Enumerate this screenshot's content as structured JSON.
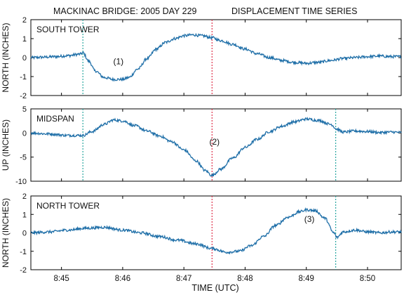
{
  "figure": {
    "title_left": "MACKINAC BRIDGE:  2005  DAY 229",
    "title_right": "DISPLACEMENT TIME SERIES",
    "xlabel": "TIME  (UTC)",
    "x_tick_labels": [
      "8:45",
      "8:46",
      "8:47",
      "8:48",
      "8:49",
      "8:50"
    ]
  },
  "chart_data": [
    {
      "type": "line",
      "panel_label": "SOUTH TOWER",
      "ylabel": "NORTH  (INCHES)",
      "xlabel": "TIME  (UTC)",
      "xlim_minutes_after_8h": [
        44.5,
        50.55
      ],
      "ylim": [
        -2,
        2
      ],
      "y_ticks": [
        -2,
        -1,
        0,
        1,
        2
      ],
      "grid": false,
      "annotation": {
        "text": "(1)",
        "x": 45.93,
        "y": -0.35
      },
      "markers": [
        {
          "x": 45.35,
          "color": "#2aa6a0"
        },
        {
          "x": 47.46,
          "color": "#e0304a"
        }
      ],
      "series": [
        {
          "color": "#1f6fa8",
          "x": [
            44.5,
            44.7,
            44.9,
            45.1,
            45.3,
            45.35,
            45.45,
            45.55,
            45.7,
            45.85,
            46.0,
            46.1,
            46.25,
            46.4,
            46.55,
            46.7,
            46.85,
            47.0,
            47.15,
            47.3,
            47.46,
            47.6,
            47.8,
            48.0,
            48.2,
            48.4,
            48.6,
            48.8,
            49.0,
            49.2,
            49.4,
            49.6,
            49.8,
            50.0,
            50.2,
            50.4,
            50.55
          ],
          "y": [
            0.0,
            0.02,
            0.05,
            0.1,
            0.18,
            0.25,
            -0.2,
            -0.7,
            -1.05,
            -1.15,
            -1.15,
            -1.05,
            -0.6,
            -0.05,
            0.45,
            0.8,
            1.0,
            1.15,
            1.2,
            1.15,
            1.05,
            0.9,
            0.7,
            0.45,
            0.2,
            0.0,
            -0.15,
            -0.25,
            -0.3,
            -0.25,
            -0.15,
            -0.05,
            0.0,
            0.05,
            0.08,
            0.05,
            0.05
          ]
        }
      ]
    },
    {
      "type": "line",
      "panel_label": "MIDSPAN",
      "ylabel": "UP  (INCHES)",
      "xlabel": "TIME  (UTC)",
      "xlim_minutes_after_8h": [
        44.5,
        50.55
      ],
      "ylim": [
        -10,
        5
      ],
      "y_ticks": [
        -10,
        -5,
        0,
        5
      ],
      "grid": false,
      "annotation": {
        "text": "(2)",
        "x": 47.5,
        "y": -2.4
      },
      "markers": [
        {
          "x": 45.35,
          "color": "#2aa6a0"
        },
        {
          "x": 47.46,
          "color": "#e0304a"
        },
        {
          "x": 49.48,
          "color": "#2aa6a0"
        }
      ],
      "series": [
        {
          "color": "#1f6fa8",
          "x": [
            44.5,
            44.8,
            45.1,
            45.35,
            45.5,
            45.7,
            45.85,
            46.0,
            46.2,
            46.4,
            46.6,
            46.8,
            47.0,
            47.2,
            47.35,
            47.46,
            47.6,
            47.8,
            48.0,
            48.2,
            48.4,
            48.6,
            48.8,
            49.0,
            49.2,
            49.4,
            49.5,
            49.6,
            49.8,
            50.0,
            50.2,
            50.4,
            50.55
          ],
          "y": [
            0.0,
            -0.2,
            -0.5,
            -0.5,
            0.3,
            1.8,
            2.7,
            2.5,
            1.5,
            0.4,
            -0.6,
            -1.8,
            -3.5,
            -5.8,
            -7.8,
            -8.8,
            -7.5,
            -5.2,
            -3.0,
            -1.3,
            0.3,
            1.4,
            2.3,
            2.9,
            2.6,
            1.8,
            0.8,
            0.2,
            0.4,
            0.3,
            0.1,
            0.2,
            0.1
          ]
        }
      ]
    },
    {
      "type": "line",
      "panel_label": "NORTH TOWER",
      "ylabel": "NORTH  (INCHES)",
      "xlabel": "TIME  (UTC)",
      "xlim_minutes_after_8h": [
        44.5,
        50.55
      ],
      "ylim": [
        -2,
        2
      ],
      "y_ticks": [
        -2,
        -1,
        0,
        1,
        2
      ],
      "grid": false,
      "annotation": {
        "text": "(3)",
        "x": 49.05,
        "y": 0.6
      },
      "markers": [
        {
          "x": 47.46,
          "color": "#e0304a"
        },
        {
          "x": 49.48,
          "color": "#2aa6a0"
        }
      ],
      "series": [
        {
          "color": "#1f6fa8",
          "x": [
            44.5,
            44.8,
            45.1,
            45.4,
            45.7,
            46.0,
            46.3,
            46.6,
            46.9,
            47.2,
            47.46,
            47.7,
            47.9,
            48.1,
            48.3,
            48.5,
            48.7,
            48.9,
            49.0,
            49.15,
            49.3,
            49.45,
            49.5,
            49.6,
            49.8,
            50.0,
            50.2,
            50.4,
            50.55
          ],
          "y": [
            0.0,
            0.05,
            0.15,
            0.25,
            0.3,
            0.15,
            0.0,
            -0.2,
            -0.4,
            -0.6,
            -0.85,
            -1.05,
            -1.0,
            -0.7,
            -0.2,
            0.4,
            0.85,
            1.15,
            1.25,
            1.2,
            0.8,
            0.0,
            -0.25,
            0.05,
            0.15,
            0.05,
            0.0,
            0.05,
            0.05
          ]
        }
      ]
    }
  ]
}
